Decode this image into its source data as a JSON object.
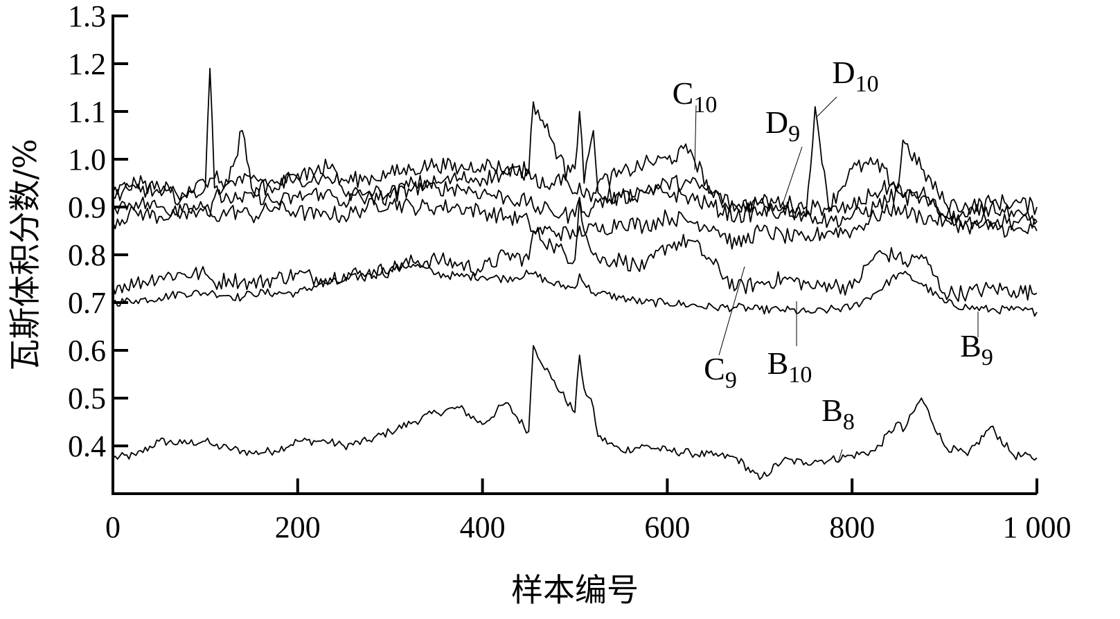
{
  "chart_data": {
    "type": "line",
    "title": "",
    "xlabel": "样本编号",
    "ylabel": "瓦斯体积分数/%",
    "xlim": [
      0,
      1000
    ],
    "ylim": [
      0.3,
      1.3
    ],
    "grid": false,
    "legend": "inline labels with leader lines",
    "x_ticks": [
      {
        "value": 0,
        "label": "0"
      },
      {
        "value": 200,
        "label": "200"
      },
      {
        "value": 400,
        "label": "400"
      },
      {
        "value": 600,
        "label": "600"
      },
      {
        "value": 800,
        "label": "800"
      },
      {
        "value": 1000,
        "label": "1 000"
      }
    ],
    "y_ticks": [
      {
        "value": 0.4,
        "label": "0.4"
      },
      {
        "value": 0.5,
        "label": "0.5"
      },
      {
        "value": 0.6,
        "label": "0.6"
      },
      {
        "value": 0.7,
        "label": "0.7"
      },
      {
        "value": 0.8,
        "label": "0.8"
      },
      {
        "value": 0.9,
        "label": "0.9"
      },
      {
        "value": 1.0,
        "label": "1.0"
      },
      {
        "value": 1.1,
        "label": "1.1"
      },
      {
        "value": 1.2,
        "label": "1.2"
      },
      {
        "value": 1.3,
        "label": "1.3"
      }
    ],
    "x": [
      0,
      25,
      50,
      75,
      100,
      105,
      110,
      125,
      140,
      150,
      175,
      200,
      225,
      230,
      250,
      275,
      300,
      325,
      350,
      375,
      400,
      425,
      450,
      455,
      475,
      500,
      505,
      510,
      520,
      525,
      550,
      575,
      600,
      625,
      650,
      675,
      700,
      725,
      750,
      760,
      775,
      800,
      825,
      850,
      855,
      875,
      900,
      925,
      950,
      975,
      1000
    ],
    "series": [
      {
        "name": "B8",
        "label": "B",
        "sub": "8",
        "values": [
          0.375,
          0.38,
          0.41,
          0.405,
          0.41,
          0.405,
          0.4,
          0.395,
          0.39,
          0.385,
          0.39,
          0.41,
          0.41,
          0.41,
          0.4,
          0.41,
          0.43,
          0.45,
          0.47,
          0.48,
          0.445,
          0.49,
          0.43,
          0.61,
          0.54,
          0.47,
          0.59,
          0.52,
          0.48,
          0.42,
          0.39,
          0.4,
          0.39,
          0.385,
          0.38,
          0.375,
          0.33,
          0.37,
          0.365,
          0.37,
          0.37,
          0.38,
          0.39,
          0.45,
          0.43,
          0.5,
          0.4,
          0.38,
          0.44,
          0.38,
          0.375
        ]
      },
      {
        "name": "B9",
        "label": "B",
        "sub": "9",
        "values": [
          0.7,
          0.705,
          0.71,
          0.72,
          0.72,
          0.72,
          0.72,
          0.715,
          0.71,
          0.72,
          0.72,
          0.72,
          0.74,
          0.74,
          0.745,
          0.76,
          0.77,
          0.78,
          0.76,
          0.755,
          0.755,
          0.75,
          0.76,
          0.76,
          0.74,
          0.73,
          0.76,
          0.74,
          0.72,
          0.72,
          0.71,
          0.7,
          0.7,
          0.695,
          0.69,
          0.69,
          0.685,
          0.685,
          0.68,
          0.68,
          0.685,
          0.69,
          0.72,
          0.76,
          0.76,
          0.74,
          0.7,
          0.69,
          0.685,
          0.685,
          0.68
        ]
      },
      {
        "name": "B10",
        "label": "B",
        "sub": "10",
        "values": [
          0.735,
          0.74,
          0.755,
          0.76,
          0.76,
          0.75,
          0.74,
          0.75,
          0.745,
          0.74,
          0.75,
          0.76,
          0.75,
          0.75,
          0.76,
          0.76,
          0.77,
          0.785,
          0.79,
          0.78,
          0.77,
          0.8,
          0.79,
          0.85,
          0.82,
          0.79,
          0.92,
          0.85,
          0.8,
          0.79,
          0.79,
          0.77,
          0.82,
          0.83,
          0.78,
          0.73,
          0.74,
          0.75,
          0.74,
          0.73,
          0.74,
          0.73,
          0.8,
          0.8,
          0.78,
          0.8,
          0.72,
          0.72,
          0.73,
          0.725,
          0.72
        ]
      },
      {
        "name": "C9",
        "label": "C",
        "sub": "9",
        "values": [
          0.87,
          0.89,
          0.88,
          0.89,
          0.9,
          0.89,
          0.88,
          0.89,
          0.89,
          0.88,
          0.9,
          0.89,
          0.88,
          0.89,
          0.88,
          0.9,
          0.91,
          0.9,
          0.9,
          0.9,
          0.89,
          0.88,
          0.87,
          0.85,
          0.85,
          0.84,
          0.86,
          0.84,
          0.86,
          0.85,
          0.87,
          0.86,
          0.88,
          0.87,
          0.86,
          0.82,
          0.85,
          0.84,
          0.83,
          0.84,
          0.85,
          0.85,
          0.88,
          0.9,
          0.89,
          0.88,
          0.87,
          0.86,
          0.86,
          0.85,
          0.85
        ]
      },
      {
        "name": "C10",
        "label": "C",
        "sub": "10",
        "values": [
          0.93,
          0.95,
          0.94,
          0.93,
          0.95,
          0.96,
          0.96,
          0.95,
          0.95,
          0.96,
          0.95,
          0.96,
          0.96,
          0.96,
          0.955,
          0.96,
          0.97,
          0.98,
          0.99,
          0.98,
          0.99,
          0.98,
          0.97,
          1.12,
          1.04,
          0.93,
          0.95,
          0.92,
          0.93,
          0.95,
          0.97,
          0.99,
          1.0,
          1.02,
          0.92,
          0.9,
          0.91,
          0.91,
          0.9,
          0.9,
          0.9,
          0.98,
          0.99,
          0.94,
          1.04,
          0.98,
          0.91,
          0.9,
          0.91,
          0.91,
          0.9
        ]
      },
      {
        "name": "D9",
        "label": "D",
        "sub": "9",
        "values": [
          0.9,
          0.91,
          0.9,
          0.89,
          0.9,
          0.88,
          0.92,
          0.92,
          0.91,
          0.93,
          0.91,
          0.92,
          0.93,
          0.93,
          0.91,
          0.93,
          0.93,
          0.94,
          0.94,
          0.94,
          0.93,
          0.92,
          0.91,
          0.9,
          0.89,
          0.88,
          0.92,
          0.89,
          0.9,
          0.91,
          0.92,
          0.93,
          0.95,
          0.95,
          0.93,
          0.9,
          0.91,
          0.9,
          0.88,
          0.88,
          0.87,
          0.88,
          0.9,
          0.93,
          0.92,
          0.92,
          0.88,
          0.87,
          0.87,
          0.87,
          0.87
        ]
      },
      {
        "name": "D10",
        "label": "D",
        "sub": "10",
        "values": [
          0.92,
          0.94,
          0.93,
          0.92,
          0.94,
          1.19,
          0.94,
          0.95,
          1.06,
          0.94,
          0.94,
          0.97,
          0.97,
          1.0,
          0.93,
          0.92,
          0.92,
          0.95,
          0.95,
          0.96,
          0.96,
          0.97,
          0.98,
          0.96,
          0.95,
          0.98,
          1.1,
          0.95,
          1.06,
          0.93,
          0.92,
          0.93,
          0.93,
          0.92,
          0.9,
          0.88,
          0.89,
          0.89,
          0.88,
          1.11,
          0.89,
          0.9,
          0.93,
          0.95,
          0.92,
          0.93,
          0.88,
          0.88,
          0.9,
          0.88,
          0.87
        ]
      }
    ],
    "annotations": [
      {
        "text": "C10",
        "x": 620,
        "y": 1.14
      },
      {
        "text": "D10",
        "x": 790,
        "y": 1.17
      },
      {
        "text": "D9",
        "x": 720,
        "y": 1.06
      },
      {
        "text": "C9",
        "x": 640,
        "y": 0.54
      },
      {
        "text": "B10",
        "x": 730,
        "y": 0.54
      },
      {
        "text": "B9",
        "x": 935,
        "y": 0.58
      },
      {
        "text": "B8",
        "x": 780,
        "y": 0.45
      }
    ]
  }
}
